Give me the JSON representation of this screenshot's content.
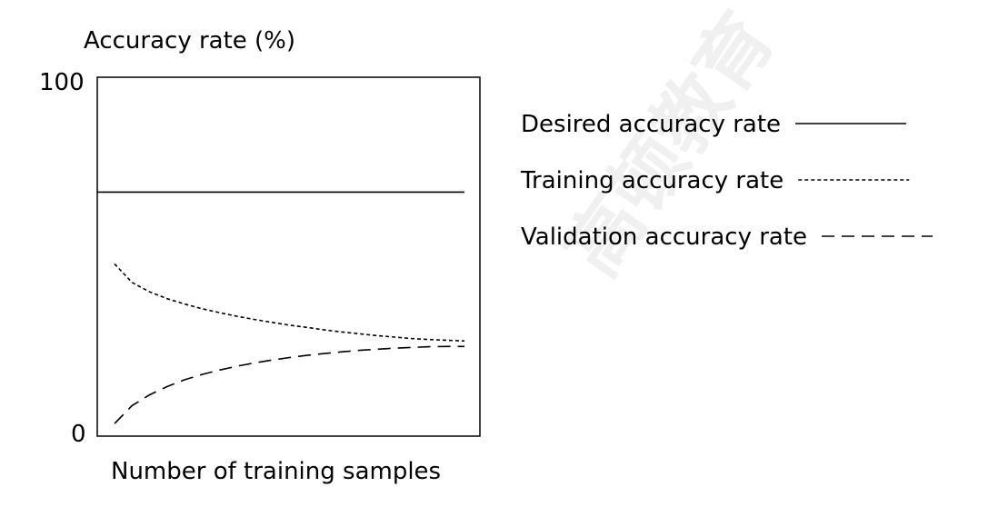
{
  "chart_data": {
    "type": "line",
    "ylabel": "Accuracy rate (%)",
    "xlabel": "Number of training samples",
    "ylim": [
      0,
      100
    ],
    "yticks": [
      "0",
      "100"
    ],
    "x": [
      0,
      0.05,
      0.1,
      0.15,
      0.2,
      0.25,
      0.3,
      0.35,
      0.4,
      0.45,
      0.5,
      0.55,
      0.6,
      0.65,
      0.7,
      0.75,
      0.8,
      0.85,
      0.9,
      0.95,
      1.0
    ],
    "series": [
      {
        "name": "Desired accuracy rate",
        "style": "solid",
        "x": [
          -0.05,
          1.0
        ],
        "values": [
          68,
          68
        ]
      },
      {
        "name": "Training accuracy rate",
        "style": "dotted",
        "values": [
          48,
          42.8,
          40.2,
          38.3,
          36.8,
          35.5,
          34.4,
          33.4,
          32.5,
          31.7,
          30.9,
          30.3,
          29.6,
          29,
          28.5,
          28,
          27.6,
          27.2,
          26.9,
          26.7,
          26.5
        ]
      },
      {
        "name": "Validation accuracy rate",
        "style": "dashed",
        "values": [
          3.5,
          8.5,
          11.5,
          13.8,
          15.7,
          17.2,
          18.4,
          19.5,
          20.4,
          21.2,
          21.9,
          22.5,
          23,
          23.5,
          23.9,
          24.2,
          24.5,
          24.7,
          24.9,
          25,
          25
        ]
      }
    ],
    "grid": false,
    "legend_position": "right"
  },
  "watermark": {
    "text": "高顿教育"
  }
}
